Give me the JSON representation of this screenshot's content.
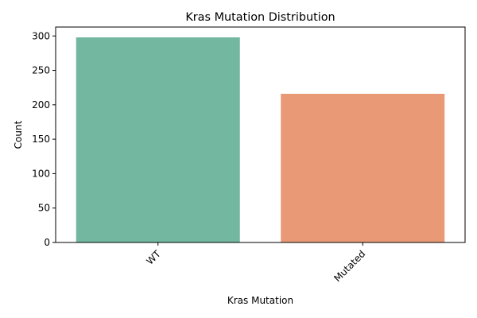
{
  "chart_data": {
    "type": "bar",
    "title": "Kras Mutation Distribution",
    "xlabel": "Kras Mutation",
    "ylabel": "Count",
    "categories": [
      "WT",
      "Mutated"
    ],
    "values": [
      298,
      216
    ],
    "colors": [
      "#73b7a1",
      "#ea9976"
    ],
    "ylim": [
      0,
      313
    ],
    "yticks": [
      0,
      50,
      100,
      150,
      200,
      250,
      300
    ],
    "ytick_labels": [
      "0",
      "50",
      "100",
      "150",
      "200",
      "250",
      "300"
    ],
    "grid": false,
    "legend": "none"
  }
}
